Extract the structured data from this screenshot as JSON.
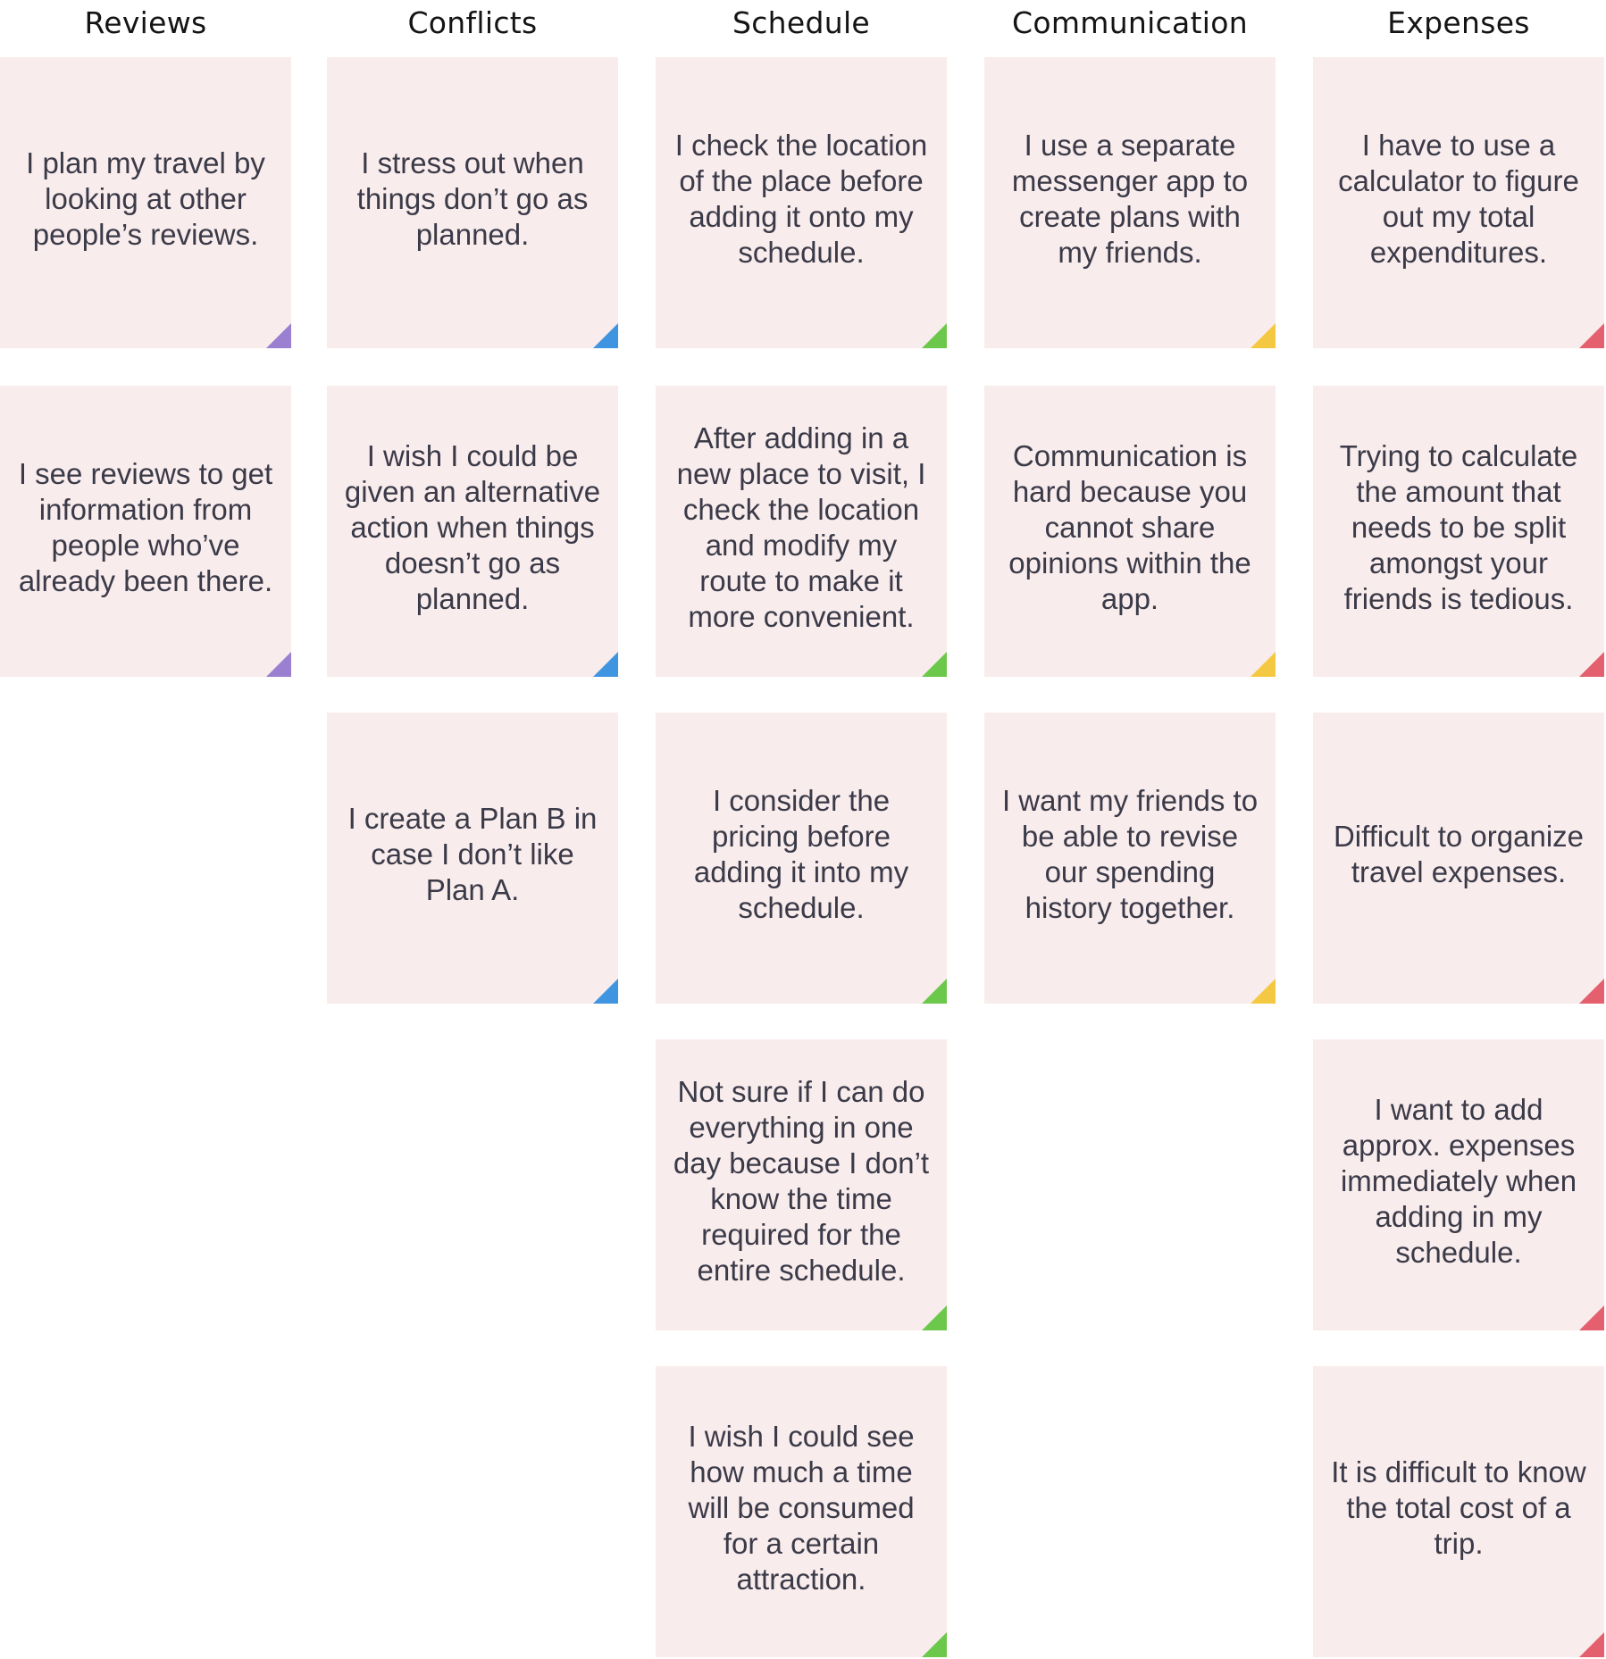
{
  "columns": [
    {
      "title": "Reviews",
      "color": "#9b7fd0",
      "notes": [
        "I plan my travel by looking at other people’s reviews.",
        "I see reviews to get information from people who’ve already been there."
      ]
    },
    {
      "title": "Conflicts",
      "color": "#3f95e0",
      "notes": [
        "I stress out when things don’t go as planned.",
        "I wish I could be given an alternative action when things doesn’t go as planned.",
        "I create a Plan B in case I don’t like Plan A."
      ]
    },
    {
      "title": "Schedule",
      "color": "#6cc84a",
      "notes": [
        "I check the location of the place before adding it onto my schedule.",
        "After adding in a new place to visit, I check the location and modify my route to make it more convenient.",
        "I  consider the pricing before adding it into my schedule.",
        "Not sure if I can do everything in one day because I don’t know the time required for the entire schedule.",
        "I wish I could see how much a time will be consumed for a certain attraction."
      ]
    },
    {
      "title": "Communication",
      "color": "#f5c842",
      "notes": [
        "I use a separate messenger app to create plans with my friends.",
        "Communication is hard because you cannot share opinions within the app.",
        "I want my friends to be able to revise our spending history together."
      ]
    },
    {
      "title": "Expenses",
      "color": "#e5606e",
      "notes": [
        "I have to use a calculator to figure out my total expenditures.",
        "Trying to calculate the amount that needs to be split amongst your friends is tedious.",
        "Difficult to organize travel expenses.",
        "I want to add approx. expenses immediately when adding in my schedule.",
        "It is difficult to know the total cost of a trip."
      ]
    }
  ]
}
